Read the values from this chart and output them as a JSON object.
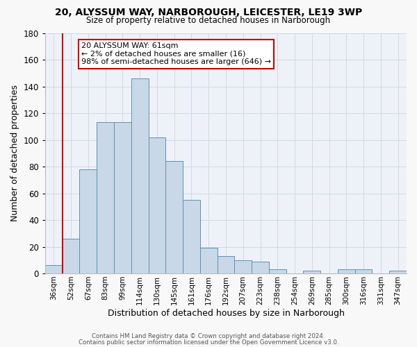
{
  "title1": "20, ALYSSUM WAY, NARBOROUGH, LEICESTER, LE19 3WP",
  "title2": "Size of property relative to detached houses in Narborough",
  "xlabel": "Distribution of detached houses by size in Narborough",
  "ylabel": "Number of detached properties",
  "categories": [
    "36sqm",
    "52sqm",
    "67sqm",
    "83sqm",
    "99sqm",
    "114sqm",
    "130sqm",
    "145sqm",
    "161sqm",
    "176sqm",
    "192sqm",
    "207sqm",
    "223sqm",
    "238sqm",
    "254sqm",
    "269sqm",
    "285sqm",
    "300sqm",
    "316sqm",
    "331sqm",
    "347sqm"
  ],
  "values": [
    6,
    26,
    78,
    113,
    113,
    146,
    102,
    84,
    55,
    19,
    13,
    10,
    9,
    3,
    0,
    2,
    0,
    3,
    3,
    0,
    2
  ],
  "bar_color": "#c8d8e8",
  "bar_edge_color": "#6090b0",
  "vline_x_idx": 1,
  "vline_color": "#cc0000",
  "annotation_line1": "20 ALYSSUM WAY: 61sqm",
  "annotation_line2": "← 2% of detached houses are smaller (16)",
  "annotation_line3": "98% of semi-detached houses are larger (646) →",
  "annotation_box_color": "#ffffff",
  "annotation_box_edge": "#cc0000",
  "ylim": [
    0,
    180
  ],
  "yticks": [
    0,
    20,
    40,
    60,
    80,
    100,
    120,
    140,
    160,
    180
  ],
  "grid_color": "#d0d8e8",
  "background_color": "#eef2f8",
  "fig_background": "#f8f8f8",
  "footer1": "Contains HM Land Registry data © Crown copyright and database right 2024.",
  "footer2": "Contains public sector information licensed under the Open Government Licence v3.0."
}
